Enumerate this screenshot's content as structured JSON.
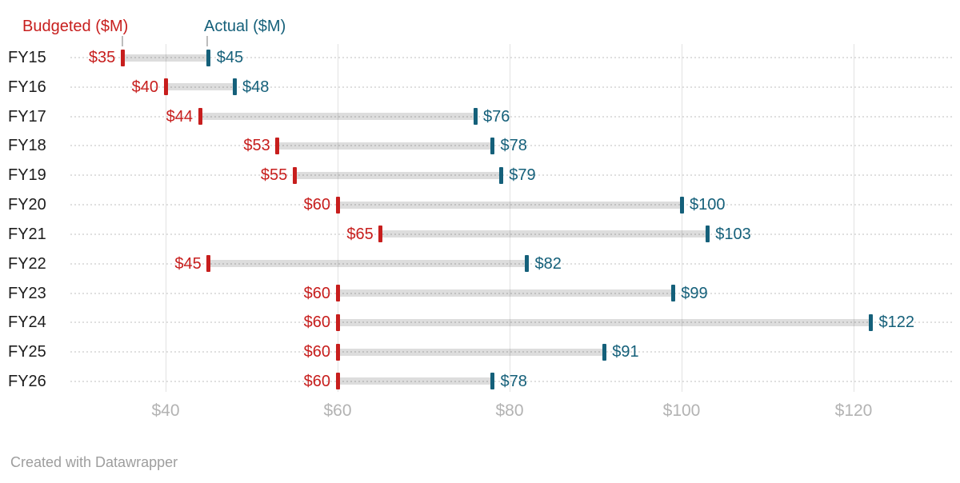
{
  "legend": {
    "budgeted": "Budgeted ($M)",
    "actual": "Actual ($M)"
  },
  "footer": {
    "text": "Created with Datawrapper"
  },
  "colors": {
    "budgeted": "#c71e1d",
    "actual": "#15607a",
    "range_bar": "#dcdcdc",
    "gridline": "#e3e3e3",
    "leader_dots": "#dfdfdf",
    "row_label": "#1d1d1d",
    "axis_label": "#b3b3b3",
    "footer_text": "#9e9e9e"
  },
  "chart_data": {
    "type": "dumbbell",
    "title": "",
    "categories": [
      "FY15",
      "FY16",
      "FY17",
      "FY18",
      "FY19",
      "FY20",
      "FY21",
      "FY22",
      "FY23",
      "FY24",
      "FY25",
      "FY26"
    ],
    "series": [
      {
        "name": "Budgeted ($M)",
        "color": "#c71e1d",
        "values": [
          35,
          40,
          44,
          53,
          55,
          60,
          65,
          45,
          60,
          60,
          60,
          60
        ]
      },
      {
        "name": "Actual ($M)",
        "color": "#15607a",
        "values": [
          45,
          48,
          76,
          78,
          79,
          100,
          103,
          82,
          99,
          122,
          91,
          78
        ]
      }
    ],
    "value_labels": {
      "budgeted": [
        "$35",
        "$40",
        "$44",
        "$53",
        "$55",
        "$60",
        "$65",
        "$45",
        "$60",
        "$60",
        "$60",
        "$60"
      ],
      "actual": [
        "$45",
        "$48",
        "$76",
        "$78",
        "$79",
        "$100",
        "$103",
        "$82",
        "$99",
        "$122",
        "$91",
        "$78"
      ]
    },
    "x_axis": {
      "ticks": [
        40,
        60,
        80,
        100,
        120
      ],
      "tick_labels": [
        "$40",
        "$60",
        "$80",
        "$100",
        "$120"
      ]
    },
    "grid": true,
    "legend_position": "top"
  }
}
